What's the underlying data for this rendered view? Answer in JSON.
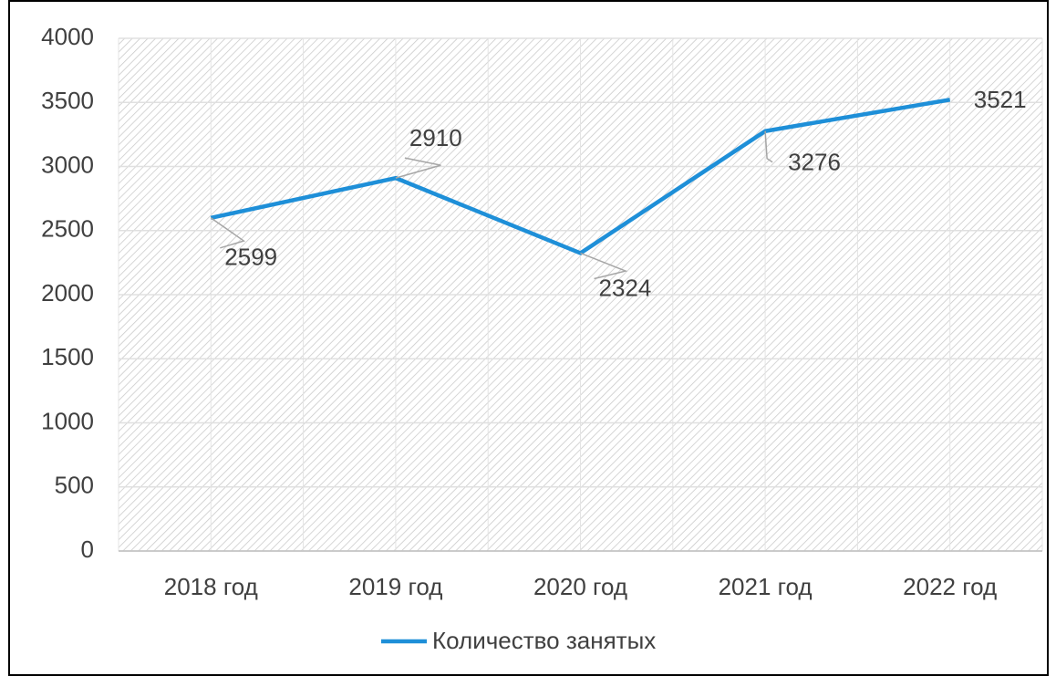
{
  "chart_data": {
    "type": "line",
    "categories": [
      "2018 год",
      "2019 год",
      "2020 год",
      "2021 год",
      "2022 год"
    ],
    "series": [
      {
        "name": "Количество занятых",
        "color": "#1e8fd8",
        "values": [
          2599,
          2910,
          2324,
          3276,
          3521
        ]
      }
    ],
    "ylim": [
      0,
      4000
    ],
    "yticks": [
      0,
      500,
      1000,
      1500,
      2000,
      2500,
      3000,
      3500,
      4000
    ],
    "grid": true,
    "legend": "bottom"
  }
}
